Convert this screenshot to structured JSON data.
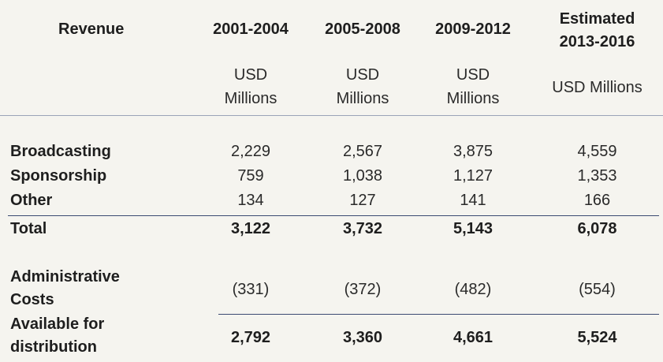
{
  "chart_data": {
    "type": "table",
    "columns": [
      "Revenue",
      "2001-2004",
      "2005-2008",
      "2009-2012",
      "Estimated 2013-2016"
    ],
    "header": {
      "revenue_label": "Revenue",
      "periods": [
        "2001-2004",
        "2005-2008",
        "2009-2012"
      ],
      "estimated_label": "Estimated",
      "estimated_period": "2013-2016"
    },
    "units": {
      "usd": "USD",
      "millions": "Millions",
      "combined": "USD Millions"
    },
    "rows": [
      {
        "label": "Broadcasting",
        "values": [
          "2,229",
          "2,567",
          "3,875",
          "4,559"
        ]
      },
      {
        "label": "Sponsorship",
        "values": [
          "759",
          "1,038",
          "1,127",
          "1,353"
        ]
      },
      {
        "label": "Other",
        "values": [
          "134",
          "127",
          "141",
          "166"
        ]
      },
      {
        "label": "Total",
        "values": [
          "3,122",
          "3,732",
          "5,143",
          "6,078"
        ]
      },
      {
        "label_line1": "Administrative",
        "label_line2": "Costs",
        "values": [
          "(331)",
          "(372)",
          "(482)",
          "(554)"
        ]
      },
      {
        "label_line1": "Available for",
        "label_line2": "distribution",
        "values": [
          "2,792",
          "3,360",
          "4,661",
          "5,524"
        ]
      }
    ]
  }
}
